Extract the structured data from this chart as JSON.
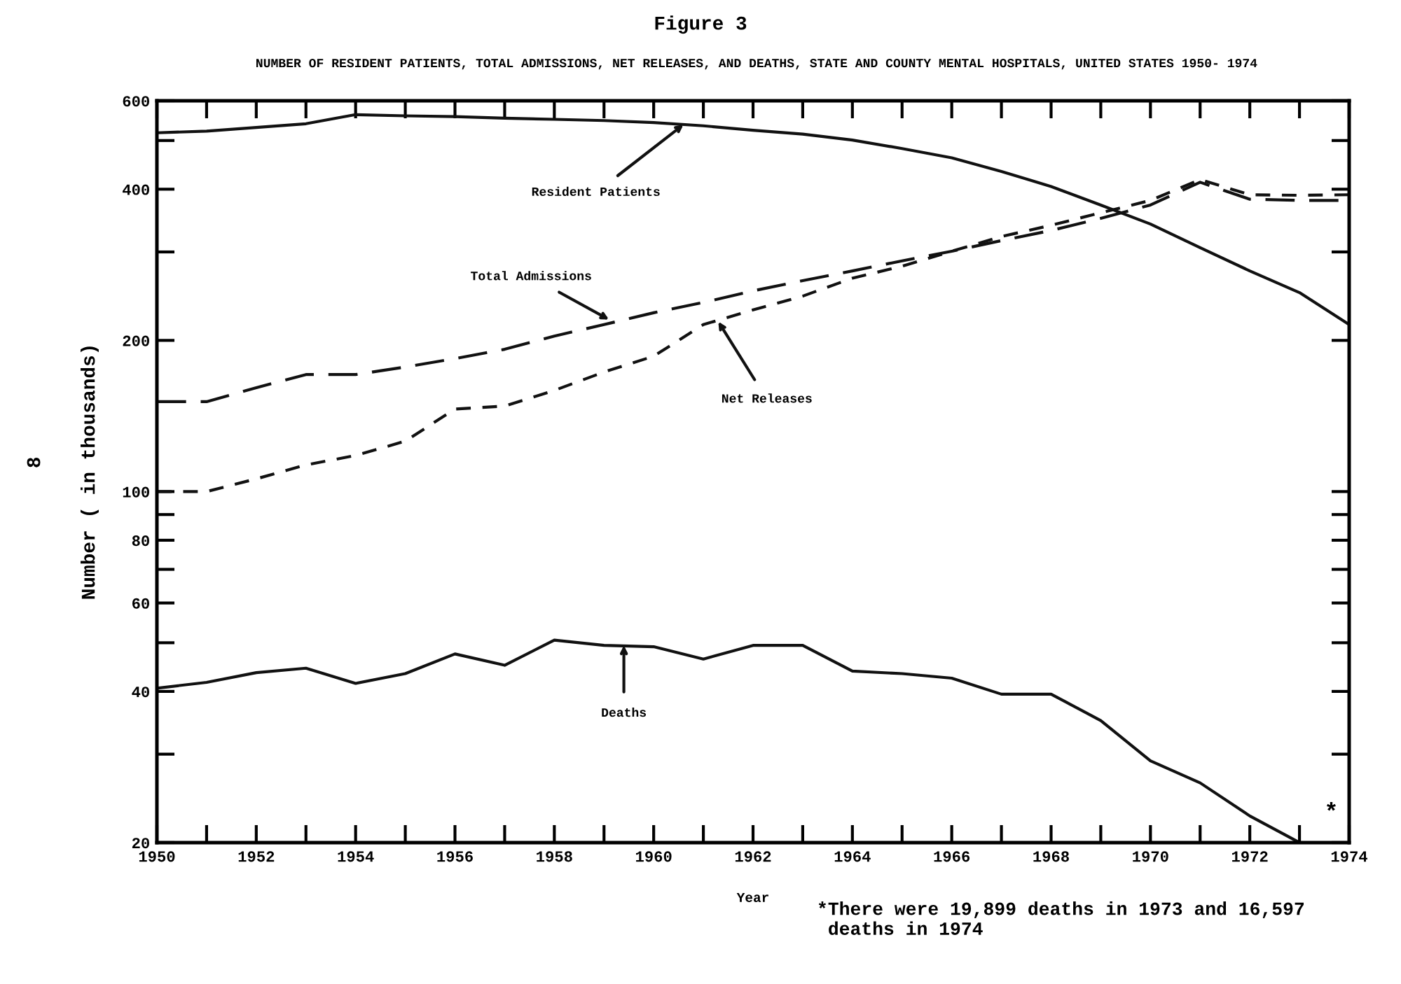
{
  "chart_data": {
    "type": "line",
    "title": "Figure 3",
    "subtitle": "NUMBER OF RESIDENT PATIENTS, TOTAL ADMISSIONS, NET RELEASES, AND DEATHS, STATE AND COUNTY MENTAL HOSPITALS, UNITED STATES 1950- 1974",
    "xlabel": "Year",
    "ylabel": "Number ( in thousands)",
    "log": "y",
    "grid": false,
    "legend": false,
    "marker": "none",
    "x": [
      1950,
      1951,
      1952,
      1953,
      1954,
      1955,
      1956,
      1957,
      1958,
      1959,
      1960,
      1961,
      1962,
      1963,
      1964,
      1965,
      1966,
      1967,
      1968,
      1969,
      1970,
      1971,
      1972,
      1973,
      1974
    ],
    "series": [
      {
        "color": "#111111",
        "line_style": "solid",
        "values": [
          518,
          522,
          531,
          540,
          563,
          560,
          558,
          554,
          551,
          548,
          543,
          535,
          524,
          515,
          501,
          482,
          462,
          434,
          405,
          372,
          341,
          306,
          275,
          249,
          215
        ]
      },
      {
        "color": "#111111",
        "line_style": "dashed",
        "values": [
          151,
          151,
          161,
          171,
          171,
          177,
          184,
          192,
          204,
          215,
          227,
          238,
          251,
          263,
          275,
          288,
          301,
          316,
          331,
          350,
          372,
          413,
          382,
          380,
          380
        ]
      },
      {
        "color": "#111111",
        "line_style": "dashed",
        "values": [
          100,
          100,
          106,
          113,
          118,
          126,
          146,
          148,
          159,
          173,
          186,
          215,
          230,
          245,
          266,
          281,
          301,
          322,
          339,
          359,
          380,
          418,
          390,
          389,
          390
        ]
      },
      {
        "color": "#111111",
        "line_style": "solid",
        "values": [
          40.6,
          41.7,
          43.6,
          44.5,
          41.5,
          43.4,
          47.5,
          45.1,
          50.6,
          49.4,
          49.1,
          46.4,
          49.4,
          49.4,
          43.9,
          43.4,
          42.5,
          39.5,
          39.5,
          35.0,
          29.1,
          26.3,
          22.6,
          20,
          null
        ]
      }
    ],
    "xlim": [
      1950,
      1974
    ],
    "ylim": [
      20,
      600
    ],
    "xticks": [
      1950,
      {
        "value": 1951,
        "label": null
      },
      1952,
      {
        "value": 1953,
        "label": null
      },
      1954,
      {
        "value": 1955,
        "label": null
      },
      1956,
      {
        "value": 1957,
        "label": null
      },
      1958,
      {
        "value": 1959,
        "label": null
      },
      1960,
      {
        "value": 1961,
        "label": null
      },
      1962,
      {
        "value": 1963,
        "label": null
      },
      1964,
      {
        "value": 1965,
        "label": null
      },
      1966,
      {
        "value": 1967,
        "label": null
      },
      1968,
      {
        "value": 1969,
        "label": null
      },
      1970,
      {
        "value": 1971,
        "label": null
      },
      1972,
      {
        "value": 1973,
        "label": null
      },
      1974
    ],
    "yticks": [
      20,
      {
        "value": 30,
        "label": null
      },
      40,
      {
        "value": 50,
        "label": null
      },
      60,
      {
        "value": 70,
        "label": null
      },
      80,
      {
        "value": 90,
        "label": null
      },
      100,
      200,
      {
        "value": 300,
        "label": null
      },
      400,
      {
        "value": 500,
        "label": null
      },
      600
    ],
    "annotations": [
      {
        "text": "Resident Patients",
        "x": 1960.6,
        "y": 538
      },
      {
        "text": "Total Admissions",
        "x": 1959.1,
        "y": 220
      },
      {
        "text": "Net Releases",
        "x": 1961.3,
        "y": 218
      },
      {
        "text": "Deaths",
        "x": 1959.4,
        "y": 49.4
      },
      "*",
      "*There were 19,899 deaths in 1973 and 16,597\n deaths in 1974",
      "8"
    ]
  }
}
